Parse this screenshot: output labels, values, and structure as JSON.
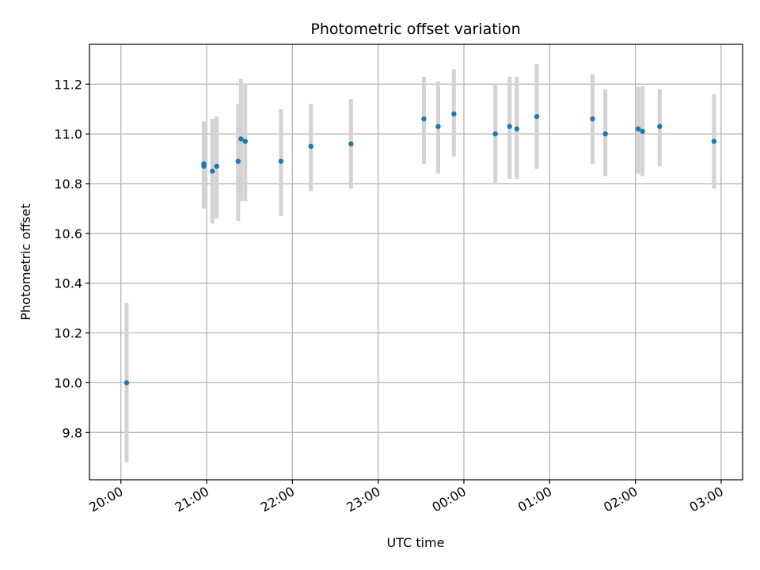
{
  "chart_data": {
    "type": "scatter",
    "title": "Photometric offset variation",
    "xlabel": "UTC time",
    "ylabel": "Photometric offset",
    "xlim": [
      "19:38",
      "03:15"
    ],
    "ylim": [
      9.61,
      11.36
    ],
    "x_ticks": [
      "20:00",
      "21:00",
      "22:00",
      "23:00",
      "00:00",
      "01:00",
      "02:00",
      "03:00"
    ],
    "y_ticks": [
      9.8,
      10.0,
      10.2,
      10.4,
      10.6,
      10.8,
      11.0,
      11.2
    ],
    "grid": true,
    "marker_color": "#1f77b4",
    "errorbar_color": "#d3d3d3",
    "points": [
      {
        "t": "20:04",
        "y": 10.0,
        "lo": 9.68,
        "hi": 10.32
      },
      {
        "t": "20:58",
        "y": 10.87,
        "lo": 10.7,
        "hi": 11.05
      },
      {
        "t": "20:58",
        "y": 10.88,
        "lo": 10.72,
        "hi": 11.04
      },
      {
        "t": "21:04",
        "y": 10.85,
        "lo": 10.64,
        "hi": 11.06
      },
      {
        "t": "21:07",
        "y": 10.87,
        "lo": 10.66,
        "hi": 11.07
      },
      {
        "t": "21:22",
        "y": 10.89,
        "lo": 10.65,
        "hi": 11.12
      },
      {
        "t": "21:24",
        "y": 10.98,
        "lo": 10.73,
        "hi": 11.22
      },
      {
        "t": "21:27",
        "y": 10.97,
        "lo": 10.73,
        "hi": 11.2
      },
      {
        "t": "21:52",
        "y": 10.89,
        "lo": 10.67,
        "hi": 11.1
      },
      {
        "t": "22:13",
        "y": 10.95,
        "lo": 10.77,
        "hi": 11.12
      },
      {
        "t": "22:41",
        "y": 10.96,
        "lo": 10.78,
        "hi": 11.14
      },
      {
        "t": "23:32",
        "y": 11.06,
        "lo": 10.88,
        "hi": 11.23
      },
      {
        "t": "23:42",
        "y": 11.03,
        "lo": 10.84,
        "hi": 11.21
      },
      {
        "t": "23:53",
        "y": 11.08,
        "lo": 10.91,
        "hi": 11.26
      },
      {
        "t": "00:22",
        "y": 11.0,
        "lo": 10.8,
        "hi": 11.2
      },
      {
        "t": "00:32",
        "y": 11.03,
        "lo": 10.82,
        "hi": 11.23
      },
      {
        "t": "00:37",
        "y": 11.02,
        "lo": 10.82,
        "hi": 11.23
      },
      {
        "t": "00:51",
        "y": 11.07,
        "lo": 10.86,
        "hi": 11.28
      },
      {
        "t": "01:30",
        "y": 11.06,
        "lo": 10.88,
        "hi": 11.24
      },
      {
        "t": "01:39",
        "y": 11.0,
        "lo": 10.83,
        "hi": 11.18
      },
      {
        "t": "02:02",
        "y": 11.02,
        "lo": 10.84,
        "hi": 11.19
      },
      {
        "t": "02:05",
        "y": 11.01,
        "lo": 10.83,
        "hi": 11.19
      },
      {
        "t": "02:17",
        "y": 11.03,
        "lo": 10.87,
        "hi": 11.18
      },
      {
        "t": "02:55",
        "y": 10.97,
        "lo": 10.78,
        "hi": 11.16
      }
    ]
  }
}
